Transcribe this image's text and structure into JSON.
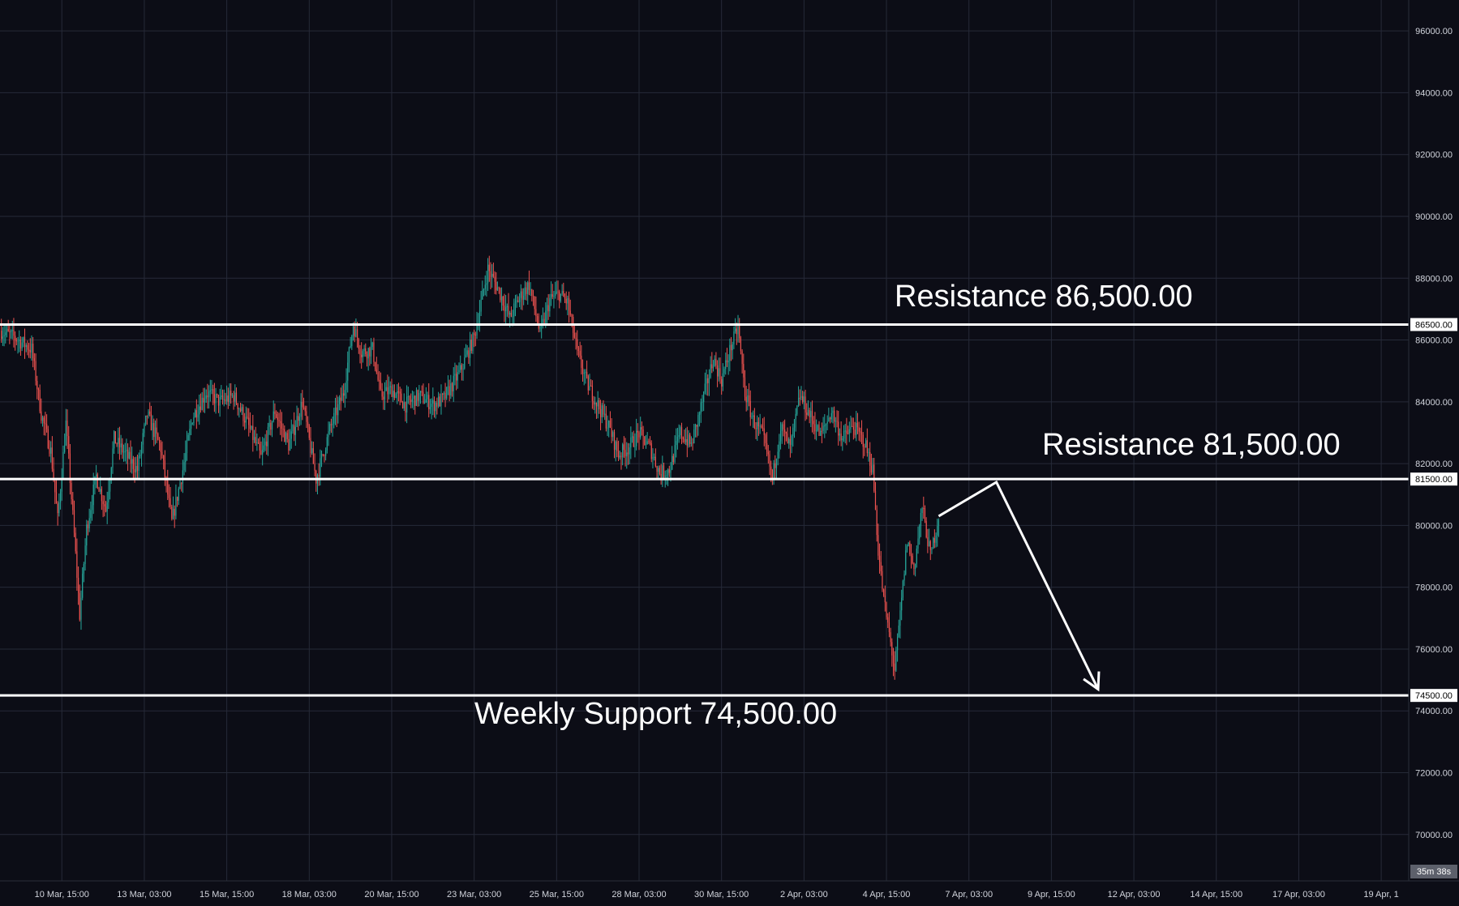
{
  "colors": {
    "background": "#0c0d16",
    "grid": "#262a38",
    "up_candle": "#26a69a",
    "down_candle": "#ef5350",
    "level_line": "#ffffff",
    "axis_text": "#d1d4dc",
    "price_tag_bg": "#ffffff",
    "countdown_bg": "#5d606b"
  },
  "countdown": "35m 38s",
  "chart_data": {
    "type": "candlestick",
    "y_axis": {
      "position": "right",
      "range": [
        68500,
        97000
      ],
      "ticks": [
        70000,
        72000,
        74000,
        76000,
        78000,
        80000,
        82000,
        84000,
        86000,
        88000,
        90000,
        92000,
        94000,
        96000
      ],
      "tick_labels": [
        "70000.00",
        "72000.00",
        "74000.00",
        "76000.00",
        "78000.00",
        "80000.00",
        "82000.00",
        "84000.00",
        "86000.00",
        "88000.00",
        "90000.00",
        "92000.00",
        "94000.00",
        "96000.00"
      ]
    },
    "x_axis": {
      "tick_labels": [
        "10 Mar, 15:00",
        "13 Mar, 03:00",
        "15 Mar, 15:00",
        "18 Mar, 03:00",
        "20 Mar, 15:00",
        "23 Mar, 03:00",
        "25 Mar, 15:00",
        "28 Mar, 03:00",
        "30 Mar, 15:00",
        "2 Apr, 03:00",
        "4 Apr, 15:00",
        "7 Apr, 03:00",
        "9 Apr, 15:00",
        "12 Apr, 03:00",
        "14 Apr, 15:00",
        "17 Apr, 03:00",
        "19 Apr, 1"
      ],
      "range_hours": [
        -45,
        980
      ],
      "tick_hours": [
        0,
        60,
        120,
        180,
        240,
        300,
        360,
        420,
        480,
        540,
        600,
        660,
        720,
        780,
        840,
        900,
        960
      ]
    },
    "levels": [
      {
        "price": 86500,
        "label": "Resistance 86,500.00",
        "tag": "86500.00"
      },
      {
        "price": 81500,
        "label": "Resistance 81,500.00",
        "tag": "81500.00"
      },
      {
        "price": 74500,
        "label": "Weekly Support 74,500.00",
        "tag": "74500.00"
      }
    ],
    "price_path": [
      [
        -45,
        86300
      ],
      [
        -35,
        86100
      ],
      [
        -22,
        85700
      ],
      [
        -15,
        83600
      ],
      [
        -8,
        82400
      ],
      [
        -3,
        80200
      ],
      [
        3,
        83300
      ],
      [
        9,
        79700
      ],
      [
        13,
        77100
      ],
      [
        18,
        79900
      ],
      [
        25,
        81600
      ],
      [
        32,
        80500
      ],
      [
        38,
        82800
      ],
      [
        48,
        82200
      ],
      [
        55,
        81800
      ],
      [
        62,
        83600
      ],
      [
        72,
        82500
      ],
      [
        80,
        80100
      ],
      [
        88,
        81800
      ],
      [
        95,
        83500
      ],
      [
        105,
        84300
      ],
      [
        115,
        84000
      ],
      [
        125,
        84200
      ],
      [
        135,
        83300
      ],
      [
        145,
        82200
      ],
      [
        155,
        83700
      ],
      [
        165,
        82600
      ],
      [
        175,
        84000
      ],
      [
        185,
        81500
      ],
      [
        195,
        83100
      ],
      [
        205,
        84300
      ],
      [
        212,
        86500
      ],
      [
        218,
        85600
      ],
      [
        226,
        85700
      ],
      [
        232,
        84200
      ],
      [
        240,
        84400
      ],
      [
        250,
        83900
      ],
      [
        260,
        84200
      ],
      [
        270,
        83900
      ],
      [
        278,
        84100
      ],
      [
        290,
        85000
      ],
      [
        300,
        86100
      ],
      [
        310,
        88300
      ],
      [
        318,
        87600
      ],
      [
        326,
        86700
      ],
      [
        332,
        87300
      ],
      [
        340,
        87800
      ],
      [
        348,
        86200
      ],
      [
        355,
        87300
      ],
      [
        362,
        87500
      ],
      [
        368,
        87200
      ],
      [
        375,
        85600
      ],
      [
        382,
        84600
      ],
      [
        390,
        83900
      ],
      [
        398,
        83200
      ],
      [
        405,
        82300
      ],
      [
        412,
        82500
      ],
      [
        420,
        83000
      ],
      [
        428,
        82500
      ],
      [
        435,
        81700
      ],
      [
        442,
        81800
      ],
      [
        450,
        83000
      ],
      [
        458,
        82600
      ],
      [
        466,
        84000
      ],
      [
        474,
        85400
      ],
      [
        480,
        84700
      ],
      [
        487,
        85800
      ],
      [
        492,
        86400
      ],
      [
        497,
        84300
      ],
      [
        503,
        83400
      ],
      [
        510,
        82900
      ],
      [
        517,
        81500
      ],
      [
        523,
        83200
      ],
      [
        530,
        82500
      ],
      [
        537,
        84200
      ],
      [
        545,
        83500
      ],
      [
        552,
        82900
      ],
      [
        560,
        83700
      ],
      [
        568,
        82800
      ],
      [
        576,
        83200
      ],
      [
        584,
        82700
      ],
      [
        590,
        81800
      ],
      [
        594,
        79200
      ],
      [
        598,
        77600
      ],
      [
        603,
        76200
      ],
      [
        606,
        75300
      ],
      [
        610,
        77100
      ],
      [
        615,
        79500
      ],
      [
        620,
        78600
      ],
      [
        626,
        80600
      ],
      [
        632,
        79000
      ],
      [
        638,
        80300
      ]
    ],
    "projection": [
      [
        638,
        80300
      ],
      [
        680,
        81400
      ],
      [
        754,
        74700
      ]
    ]
  }
}
